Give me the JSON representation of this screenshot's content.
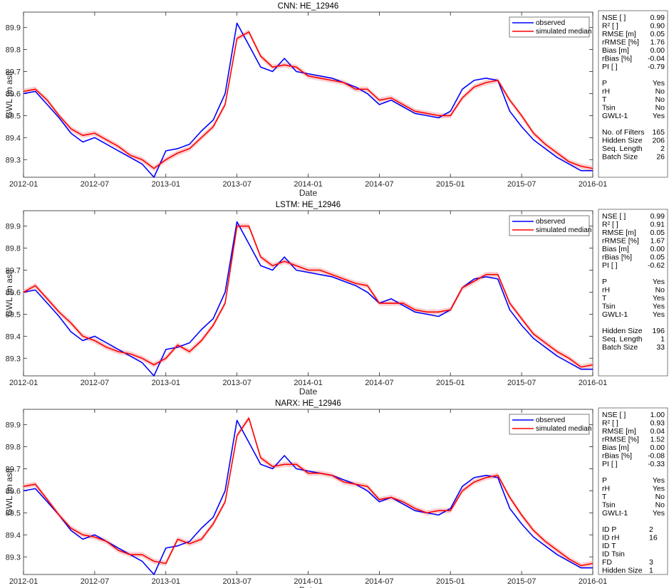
{
  "charts": [
    {
      "title": "CNN: HE_12946",
      "xlabel": "Date",
      "ylabel": "GWL [m asl]",
      "legend": [
        "observed",
        "simulated median"
      ],
      "stats": [
        [
          "NSE [ ]",
          "0.99"
        ],
        [
          "R² [ ]",
          "0.90"
        ],
        [
          "RMSE [m]",
          "0.05"
        ],
        [
          "rRMSE [%]",
          "1.76"
        ],
        [
          "Bias [m]",
          "0.00"
        ],
        [
          "rBias [%]",
          "-0.04"
        ],
        [
          "PI [ ]",
          "-0.79"
        ],
        [
          "",
          ""
        ],
        [
          "P",
          "Yes"
        ],
        [
          "rH",
          "No"
        ],
        [
          "T",
          "No"
        ],
        [
          "Tsin",
          "No"
        ],
        [
          "GWLt-1",
          "Yes"
        ],
        [
          "",
          ""
        ],
        [
          "No. of Filters",
          "165"
        ],
        [
          "Hidden Size",
          "206"
        ],
        [
          "Seq. Length",
          "2"
        ],
        [
          "Batch Size",
          "26"
        ]
      ]
    },
    {
      "title": "LSTM: HE_12946",
      "xlabel": "Date",
      "ylabel": "GWL [m asl]",
      "legend": [
        "observed",
        "simulated median"
      ],
      "stats": [
        [
          "NSE [ ]",
          "0.99"
        ],
        [
          "R² [ ]",
          "0.91"
        ],
        [
          "RMSE [m]",
          "0.05"
        ],
        [
          "rRMSE [%]",
          "1.67"
        ],
        [
          "Bias [m]",
          "0.00"
        ],
        [
          "rBias [%]",
          "0.05"
        ],
        [
          "PI [ ]",
          "-0.62"
        ],
        [
          "",
          ""
        ],
        [
          "P",
          "Yes"
        ],
        [
          "rH",
          "No"
        ],
        [
          "T",
          "Yes"
        ],
        [
          "Tsin",
          "Yes"
        ],
        [
          "GWLt-1",
          "Yes"
        ],
        [
          "",
          ""
        ],
        [
          "Hidden Size",
          "196"
        ],
        [
          "Seq. Length",
          "1"
        ],
        [
          "Batch Size",
          "33"
        ]
      ]
    },
    {
      "title": "NARX: HE_12946",
      "xlabel": "Date",
      "ylabel": "GWL [m asl]",
      "legend": [
        "observed",
        "simulated median"
      ],
      "stats": [
        [
          "NSE [ ]",
          "1.00"
        ],
        [
          "R² [ ]",
          "0.93"
        ],
        [
          "RMSE [m]",
          "0.04"
        ],
        [
          "rRMSE [%]",
          "1.52"
        ],
        [
          "Bias [m]",
          "0.00"
        ],
        [
          "rBias [%]",
          "-0.08"
        ],
        [
          "PI [ ]",
          "-0.33"
        ],
        [
          "",
          ""
        ],
        [
          "P",
          "Yes"
        ],
        [
          "rH",
          "Yes"
        ],
        [
          "T",
          "No"
        ],
        [
          "Tsin",
          "No"
        ],
        [
          "GWLt-1",
          "Yes"
        ],
        [
          "",
          ""
        ],
        [
          "ID P",
          "2"
        ],
        [
          "ID rH",
          "16"
        ],
        [
          "ID T",
          ""
        ],
        [
          "ID Tsin",
          ""
        ],
        [
          "FD",
          "3"
        ],
        [
          "Hidden Size",
          "1"
        ]
      ]
    }
  ],
  "chart_data": {
    "type": "line",
    "x_ticks": [
      "2012-01",
      "2012-07",
      "2013-01",
      "2013-07",
      "2014-01",
      "2014-07",
      "2015-01",
      "2015-07",
      "2016-01"
    ],
    "y_ticks": [
      89.3,
      89.4,
      89.5,
      89.6,
      89.7,
      89.8,
      89.9
    ],
    "ylim": [
      89.22,
      89.97
    ],
    "xlim": [
      "2012-01",
      "2016-01"
    ],
    "colors": {
      "observed": "#0000ff",
      "simulated": "#ff0000",
      "band": "#f7b0b0"
    },
    "observed": [
      [
        "2012-01",
        89.6
      ],
      [
        "2012-02",
        89.61
      ],
      [
        "2012-03",
        89.55
      ],
      [
        "2012-04",
        89.49
      ],
      [
        "2012-05",
        89.42
      ],
      [
        "2012-06",
        89.38
      ],
      [
        "2012-07",
        89.4
      ],
      [
        "2012-08",
        89.37
      ],
      [
        "2012-09",
        89.34
      ],
      [
        "2012-10",
        89.31
      ],
      [
        "2012-11",
        89.28
      ],
      [
        "2012-12",
        89.22
      ],
      [
        "2013-01",
        89.34
      ],
      [
        "2013-02",
        89.35
      ],
      [
        "2013-03",
        89.37
      ],
      [
        "2013-04",
        89.43
      ],
      [
        "2013-05",
        89.48
      ],
      [
        "2013-06",
        89.6
      ],
      [
        "2013-07",
        89.92
      ],
      [
        "2013-08",
        89.82
      ],
      [
        "2013-09",
        89.72
      ],
      [
        "2013-10",
        89.7
      ],
      [
        "2013-11",
        89.76
      ],
      [
        "2013-12",
        89.7
      ],
      [
        "2014-01",
        89.69
      ],
      [
        "2014-02",
        89.68
      ],
      [
        "2014-03",
        89.67
      ],
      [
        "2014-04",
        89.65
      ],
      [
        "2014-05",
        89.63
      ],
      [
        "2014-06",
        89.6
      ],
      [
        "2014-07",
        89.55
      ],
      [
        "2014-08",
        89.57
      ],
      [
        "2014-09",
        89.54
      ],
      [
        "2014-10",
        89.51
      ],
      [
        "2014-11",
        89.5
      ],
      [
        "2014-12",
        89.49
      ],
      [
        "2015-01",
        89.52
      ],
      [
        "2015-02",
        89.62
      ],
      [
        "2015-03",
        89.66
      ],
      [
        "2015-04",
        89.67
      ],
      [
        "2015-05",
        89.66
      ],
      [
        "2015-06",
        89.52
      ],
      [
        "2015-07",
        89.45
      ],
      [
        "2015-08",
        89.39
      ],
      [
        "2015-09",
        89.35
      ],
      [
        "2015-10",
        89.31
      ],
      [
        "2015-11",
        89.28
      ],
      [
        "2015-12",
        89.25
      ],
      [
        "2016-01",
        89.25
      ]
    ],
    "simulated_median": [
      {
        "model": "CNN",
        "values": [
          [
            "2012-01",
            89.61
          ],
          [
            "2012-02",
            89.62
          ],
          [
            "2012-03",
            89.57
          ],
          [
            "2012-04",
            89.5
          ],
          [
            "2012-05",
            89.44
          ],
          [
            "2012-06",
            89.41
          ],
          [
            "2012-07",
            89.42
          ],
          [
            "2012-08",
            89.39
          ],
          [
            "2012-09",
            89.36
          ],
          [
            "2012-10",
            89.32
          ],
          [
            "2012-11",
            89.3
          ],
          [
            "2012-12",
            89.26
          ],
          [
            "2013-01",
            89.3
          ],
          [
            "2013-02",
            89.33
          ],
          [
            "2013-03",
            89.35
          ],
          [
            "2013-04",
            89.4
          ],
          [
            "2013-05",
            89.45
          ],
          [
            "2013-06",
            89.55
          ],
          [
            "2013-07",
            89.85
          ],
          [
            "2013-08",
            89.88
          ],
          [
            "2013-09",
            89.77
          ],
          [
            "2013-10",
            89.72
          ],
          [
            "2013-11",
            89.73
          ],
          [
            "2013-12",
            89.72
          ],
          [
            "2014-01",
            89.68
          ],
          [
            "2014-02",
            89.67
          ],
          [
            "2014-03",
            89.66
          ],
          [
            "2014-04",
            89.65
          ],
          [
            "2014-05",
            89.62
          ],
          [
            "2014-06",
            89.62
          ],
          [
            "2014-07",
            89.57
          ],
          [
            "2014-08",
            89.58
          ],
          [
            "2014-09",
            89.55
          ],
          [
            "2014-10",
            89.52
          ],
          [
            "2014-11",
            89.51
          ],
          [
            "2014-12",
            89.5
          ],
          [
            "2015-01",
            89.5
          ],
          [
            "2015-02",
            89.58
          ],
          [
            "2015-03",
            89.63
          ],
          [
            "2015-04",
            89.65
          ],
          [
            "2015-05",
            89.66
          ],
          [
            "2015-06",
            89.57
          ],
          [
            "2015-07",
            89.5
          ],
          [
            "2015-08",
            89.42
          ],
          [
            "2015-09",
            89.37
          ],
          [
            "2015-10",
            89.33
          ],
          [
            "2015-11",
            89.29
          ],
          [
            "2015-12",
            89.27
          ],
          [
            "2016-01",
            89.26
          ]
        ]
      },
      {
        "model": "LSTM",
        "values": [
          [
            "2012-01",
            89.6
          ],
          [
            "2012-02",
            89.63
          ],
          [
            "2012-03",
            89.57
          ],
          [
            "2012-04",
            89.51
          ],
          [
            "2012-05",
            89.46
          ],
          [
            "2012-06",
            89.4
          ],
          [
            "2012-07",
            89.38
          ],
          [
            "2012-08",
            89.35
          ],
          [
            "2012-09",
            89.33
          ],
          [
            "2012-10",
            89.32
          ],
          [
            "2012-11",
            89.3
          ],
          [
            "2012-12",
            89.27
          ],
          [
            "2013-01",
            89.3
          ],
          [
            "2013-02",
            89.36
          ],
          [
            "2013-03",
            89.33
          ],
          [
            "2013-04",
            89.38
          ],
          [
            "2013-05",
            89.45
          ],
          [
            "2013-06",
            89.55
          ],
          [
            "2013-07",
            89.9
          ],
          [
            "2013-08",
            89.9
          ],
          [
            "2013-09",
            89.76
          ],
          [
            "2013-10",
            89.72
          ],
          [
            "2013-11",
            89.74
          ],
          [
            "2013-12",
            89.72
          ],
          [
            "2014-01",
            89.7
          ],
          [
            "2014-02",
            89.7
          ],
          [
            "2014-03",
            89.68
          ],
          [
            "2014-04",
            89.66
          ],
          [
            "2014-05",
            89.64
          ],
          [
            "2014-06",
            89.63
          ],
          [
            "2014-07",
            89.55
          ],
          [
            "2014-08",
            89.55
          ],
          [
            "2014-09",
            89.55
          ],
          [
            "2014-10",
            89.52
          ],
          [
            "2014-11",
            89.51
          ],
          [
            "2014-12",
            89.51
          ],
          [
            "2015-01",
            89.52
          ],
          [
            "2015-02",
            89.62
          ],
          [
            "2015-03",
            89.65
          ],
          [
            "2015-04",
            89.68
          ],
          [
            "2015-05",
            89.68
          ],
          [
            "2015-06",
            89.55
          ],
          [
            "2015-07",
            89.48
          ],
          [
            "2015-08",
            89.41
          ],
          [
            "2015-09",
            89.37
          ],
          [
            "2015-10",
            89.33
          ],
          [
            "2015-11",
            89.3
          ],
          [
            "2015-12",
            89.26
          ],
          [
            "2016-01",
            89.27
          ]
        ]
      },
      {
        "model": "NARX",
        "values": [
          [
            "2012-01",
            89.62
          ],
          [
            "2012-02",
            89.63
          ],
          [
            "2012-03",
            89.56
          ],
          [
            "2012-04",
            89.49
          ],
          [
            "2012-05",
            89.43
          ],
          [
            "2012-06",
            89.4
          ],
          [
            "2012-07",
            89.39
          ],
          [
            "2012-08",
            89.37
          ],
          [
            "2012-09",
            89.33
          ],
          [
            "2012-10",
            89.31
          ],
          [
            "2012-11",
            89.31
          ],
          [
            "2012-12",
            89.28
          ],
          [
            "2013-01",
            89.27
          ],
          [
            "2013-02",
            89.38
          ],
          [
            "2013-03",
            89.36
          ],
          [
            "2013-04",
            89.38
          ],
          [
            "2013-05",
            89.45
          ],
          [
            "2013-06",
            89.55
          ],
          [
            "2013-07",
            89.85
          ],
          [
            "2013-08",
            89.93
          ],
          [
            "2013-09",
            89.75
          ],
          [
            "2013-10",
            89.71
          ],
          [
            "2013-11",
            89.72
          ],
          [
            "2013-12",
            89.72
          ],
          [
            "2014-01",
            89.68
          ],
          [
            "2014-02",
            89.68
          ],
          [
            "2014-03",
            89.67
          ],
          [
            "2014-04",
            89.64
          ],
          [
            "2014-05",
            89.63
          ],
          [
            "2014-06",
            89.62
          ],
          [
            "2014-07",
            89.56
          ],
          [
            "2014-08",
            89.57
          ],
          [
            "2014-09",
            89.55
          ],
          [
            "2014-10",
            89.52
          ],
          [
            "2014-11",
            89.5
          ],
          [
            "2014-12",
            89.51
          ],
          [
            "2015-01",
            89.51
          ],
          [
            "2015-02",
            89.6
          ],
          [
            "2015-03",
            89.64
          ],
          [
            "2015-04",
            89.66
          ],
          [
            "2015-05",
            89.67
          ],
          [
            "2015-06",
            89.57
          ],
          [
            "2015-07",
            89.49
          ],
          [
            "2015-08",
            89.42
          ],
          [
            "2015-09",
            89.37
          ],
          [
            "2015-10",
            89.33
          ],
          [
            "2015-11",
            89.29
          ],
          [
            "2015-12",
            89.26
          ],
          [
            "2016-01",
            89.27
          ]
        ]
      }
    ]
  }
}
